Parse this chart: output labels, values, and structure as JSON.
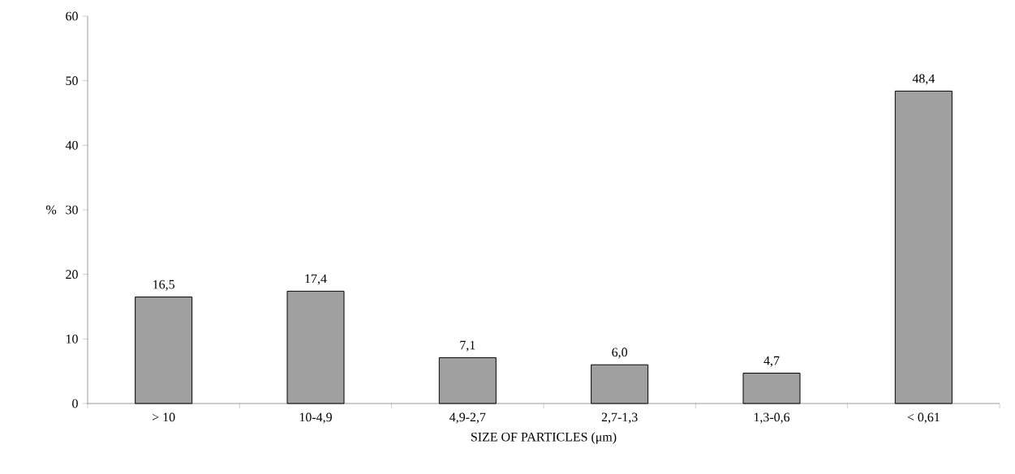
{
  "chart_data": {
    "type": "bar",
    "xlabel": "SIZE OF PARTICLES (μm)",
    "ylabel": "%",
    "categories": [
      "> 10",
      "10-4,9",
      "4,9-2,7",
      "2,7-1,3",
      "1,3-0,6",
      "< 0,61"
    ],
    "values": [
      16.5,
      17.4,
      7.1,
      6.0,
      4.7,
      48.4
    ],
    "value_labels": [
      "16,5",
      "17,4",
      "7,1",
      "6,0",
      "4,7",
      "48,4"
    ],
    "color": "#a0a0a0",
    "ylim": [
      0,
      60
    ],
    "yticks": [
      0,
      10,
      20,
      30,
      40,
      50,
      60
    ],
    "grid": false
  }
}
